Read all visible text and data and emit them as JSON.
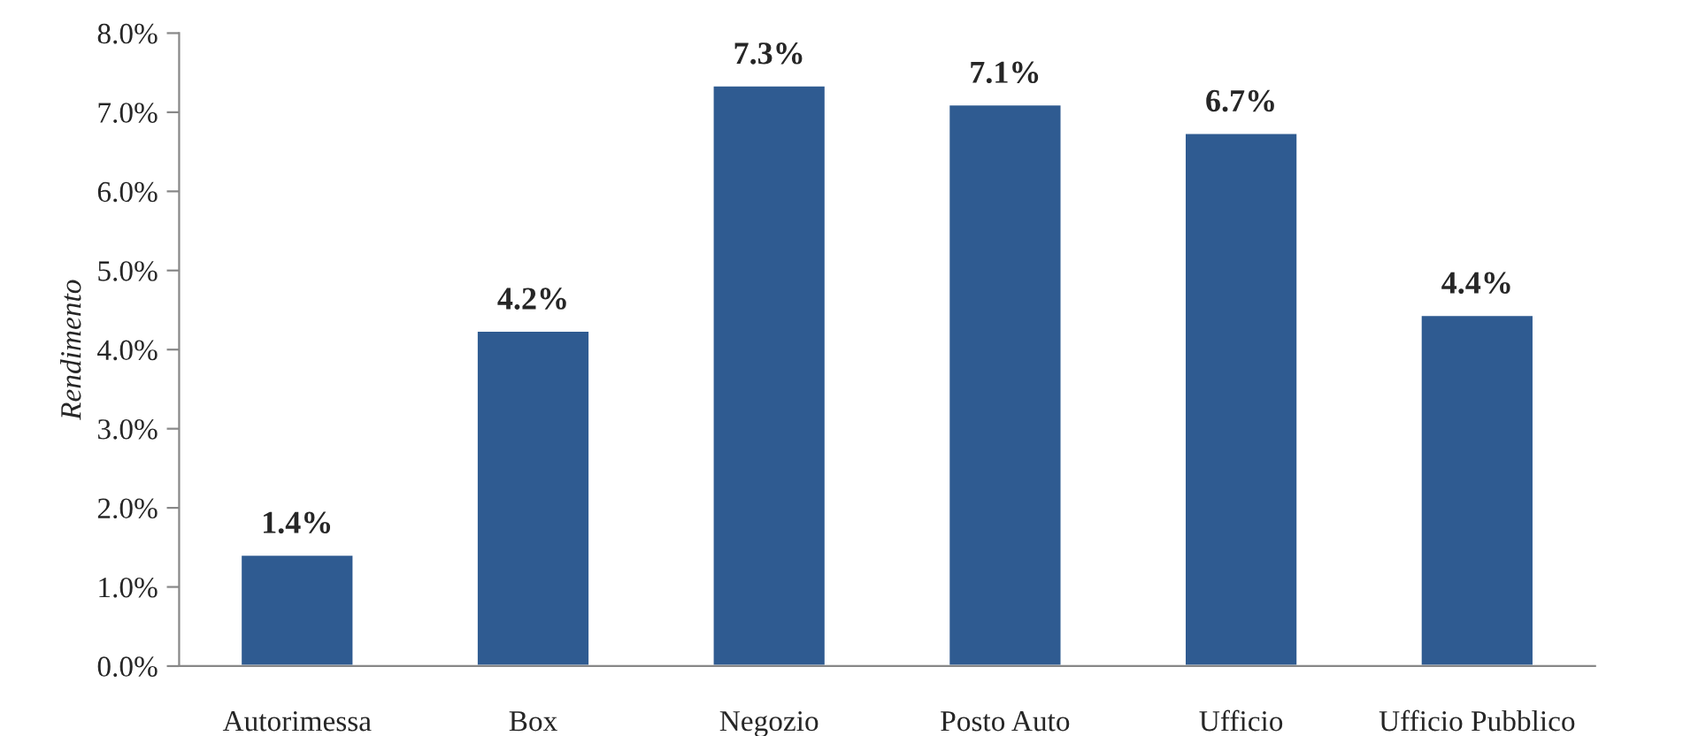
{
  "chart_data": {
    "type": "bar",
    "ylabel": "Rendimento",
    "categories": [
      "Autorimessa",
      "Box",
      "Negozio",
      "Posto Auto",
      "Ufficio",
      "Ufficio Pubblico"
    ],
    "values": [
      1.41,
      4.24,
      7.34,
      7.1,
      6.74,
      4.44
    ],
    "value_labels": [
      "1.4%",
      "4.2%",
      "7.3%",
      "7.1%",
      "6.7%",
      "4.4%"
    ],
    "color": "#2f5b91",
    "ylim": [
      0,
      8
    ],
    "yticks": [
      {
        "value": 0,
        "label": "0.0%"
      },
      {
        "value": 1,
        "label": "1.0%"
      },
      {
        "value": 2,
        "label": "2.0%"
      },
      {
        "value": 3,
        "label": "3.0%"
      },
      {
        "value": 4,
        "label": "4.0%"
      },
      {
        "value": 5,
        "label": "5.0%"
      },
      {
        "value": 6,
        "label": "6.0%"
      },
      {
        "value": 7,
        "label": "7.0%"
      },
      {
        "value": 8,
        "label": "8.0%"
      }
    ],
    "grid": false,
    "legend": false
  }
}
